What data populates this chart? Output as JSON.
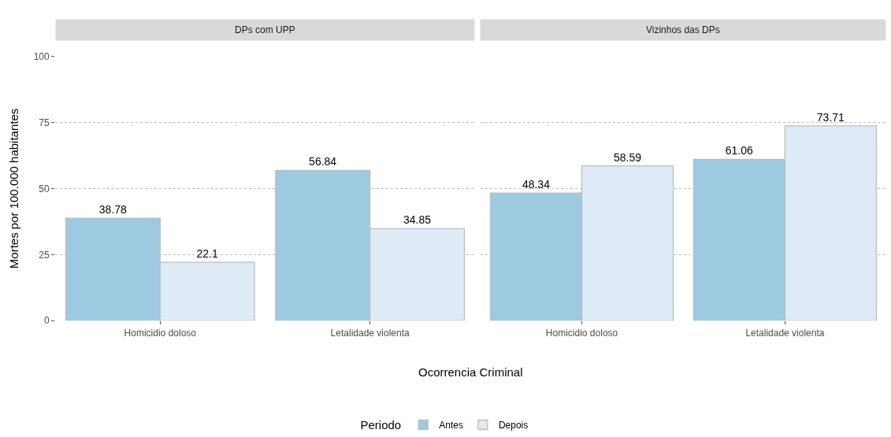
{
  "chart_data": [
    {
      "type": "bar",
      "title": "DPs com UPP",
      "ylabel": "Mortes por 100.000 habitantes",
      "xlabel": "Ocorrencia Criminal",
      "legend_title": "Periodo",
      "categories": [
        "Homicidio doloso",
        "Letalidade violenta"
      ],
      "series": [
        {
          "name": "Antes",
          "color": "#9ecae1",
          "values": [
            38.78,
            56.84
          ]
        },
        {
          "name": "Depois",
          "color": "#deebf7",
          "values": [
            22.1,
            34.85
          ]
        }
      ],
      "ylim": [
        0,
        100
      ],
      "yticks": [
        0,
        25,
        50,
        75,
        100
      ],
      "grid": "y",
      "legend": "bottom",
      "data_labels": true
    },
    {
      "type": "bar",
      "title": "Vizinhos das DPs",
      "categories": [
        "Homicidio doloso",
        "Letalidade violenta"
      ],
      "series": [
        {
          "name": "Antes",
          "color": "#9ecae1",
          "values": [
            48.34,
            61.06
          ]
        },
        {
          "name": "Depois",
          "color": "#deebf7",
          "values": [
            58.59,
            73.71
          ]
        }
      ],
      "ylim": [
        0,
        100
      ],
      "yticks": [
        0,
        25,
        50,
        75,
        100
      ],
      "grid": "y",
      "legend": "bottom",
      "data_labels": true,
      "tick_labels": "x"
    }
  ]
}
